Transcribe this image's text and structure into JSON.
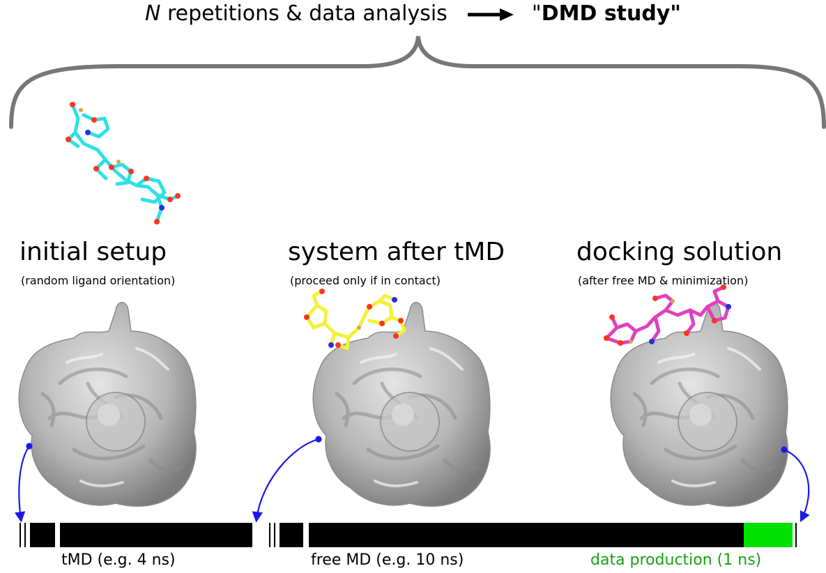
{
  "header": {
    "n_symbol": "N",
    "repetitions_text": "repetitions & data analysis",
    "study_quote_open": "\"",
    "study_label": "DMD study",
    "study_quote_close": "\""
  },
  "stages": [
    {
      "title": "initial setup",
      "subtitle": "(random ligand orientation)"
    },
    {
      "title": "system after tMD",
      "subtitle": "(proceed only if in contact)"
    },
    {
      "title": "docking solution",
      "subtitle": "(after free MD & minimization)"
    }
  ],
  "timeline": {
    "tmd_label": "tMD (e.g. 4 ns)",
    "free_md_label": "free MD (e.g. 10 ns)",
    "production_label": "data production (1 ns)"
  },
  "colors": {
    "ligand_initial": "#2ee0e6",
    "ligand_tmd": "#f2f23a",
    "ligand_docked": "#e040c0",
    "atom_o": "#ff3322",
    "atom_n": "#2233dd",
    "protein": "#b8b8b8",
    "arrow": "#1a1ae6",
    "production": "#00e000",
    "brace": "#777777"
  }
}
